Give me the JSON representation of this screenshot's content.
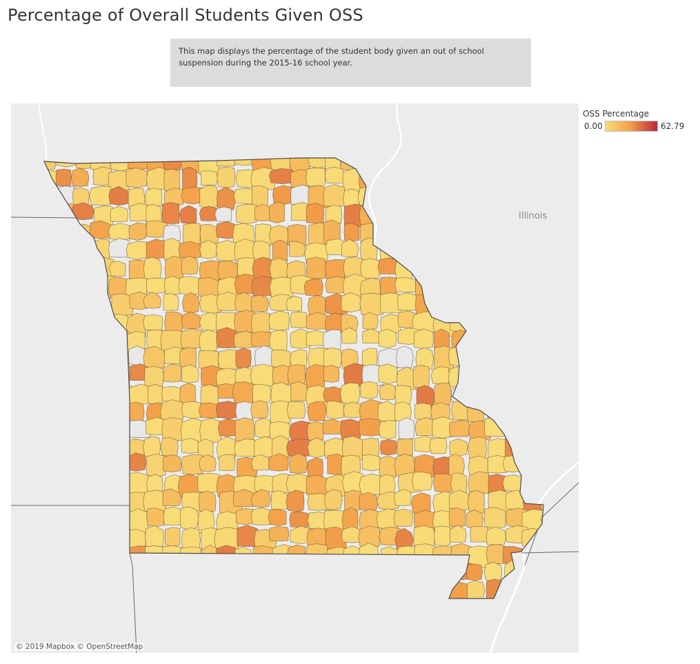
{
  "title": "Percentage of Overall Students Given OSS",
  "description": "This map displays the percentage of the student body given an out of school suspension during the 2015-16 school year.",
  "map": {
    "state_label": "Illinois",
    "attribution": "© 2019 Mapbox © OpenStreetMap",
    "background_color": "#ececec",
    "no_data_color": "#e8e8e8",
    "district_border_color": "#6b5a3c"
  },
  "legend": {
    "title": "OSS Percentage",
    "min_label": "0.00",
    "max_label": "62.79",
    "min_value": 0.0,
    "max_value": 62.79,
    "colors": [
      "#f8dc78",
      "#f4a24a",
      "#b8213a"
    ]
  }
}
